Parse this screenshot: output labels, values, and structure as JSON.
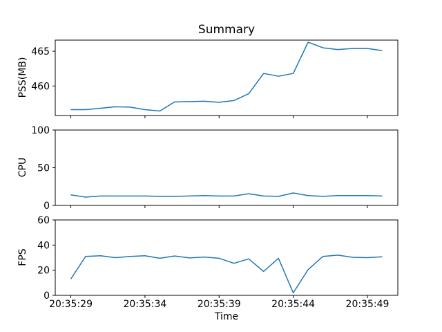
{
  "chart_data": {
    "type": "line",
    "title": "Summary",
    "xlabel": "Time",
    "line_color": "#1f77b4",
    "frame_color": "#000000",
    "legend": "none",
    "grid": false,
    "x_seconds": [
      0,
      1,
      2,
      3,
      4,
      5,
      6,
      7,
      8,
      9,
      10,
      11,
      12,
      13,
      14,
      15,
      16,
      17,
      18,
      19,
      20,
      21
    ],
    "xlim": [
      -1.05,
      22.05
    ],
    "xticks": [
      {
        "t": 0,
        "label": "20:35:29"
      },
      {
        "t": 5,
        "label": "20:35:34"
      },
      {
        "t": 10,
        "label": "20:35:39"
      },
      {
        "t": 15,
        "label": "20:35:44"
      },
      {
        "t": 20,
        "label": "20:35:49"
      }
    ],
    "subplots": [
      {
        "name": "pss",
        "ylabel": "PSS(MB)",
        "ylim": [
          455.75,
          466.6
        ],
        "yticks": [
          460,
          465
        ],
        "values": [
          456.6,
          456.6,
          456.8,
          457.0,
          456.95,
          456.6,
          456.4,
          457.7,
          457.75,
          457.8,
          457.65,
          457.9,
          458.9,
          461.8,
          461.4,
          461.8,
          466.3,
          465.5,
          465.25,
          465.4,
          465.4,
          465.1
        ]
      },
      {
        "name": "cpu",
        "ylabel": "CPU",
        "ylim": [
          0,
          100
        ],
        "yticks": [
          0,
          50,
          100
        ],
        "values": [
          14,
          11,
          12.5,
          12.5,
          12.5,
          12.5,
          12,
          12,
          12.5,
          13,
          12.5,
          12.5,
          15.5,
          12.5,
          12,
          16.5,
          13,
          12,
          13,
          13,
          13,
          12.5
        ]
      },
      {
        "name": "fps",
        "ylabel": "FPS",
        "ylim": [
          0,
          60
        ],
        "yticks": [
          0,
          20,
          40,
          60
        ],
        "values": [
          13,
          31,
          31.5,
          30,
          31,
          31.5,
          29.5,
          31.3,
          29.8,
          30.5,
          29.5,
          25.5,
          29,
          19,
          29.5,
          2,
          20.5,
          31,
          32,
          30.3,
          30,
          30.7
        ]
      }
    ]
  }
}
